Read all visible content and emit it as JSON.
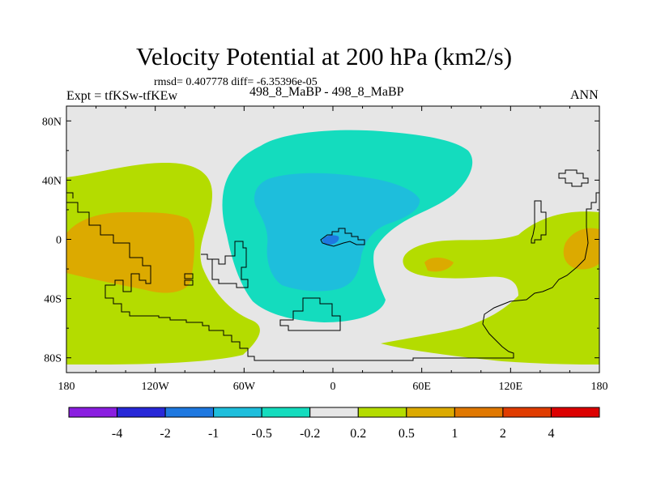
{
  "chart_data": {
    "type": "map_contour",
    "title": "Velocity Potential at 200 hPa (km2/s)",
    "stats_text": "rmsd= 0.407778 diff= -6.35396e-05",
    "left_label": "Expt = tfKSw-tfKEw",
    "center_label": "498_8_MaBP - 498_8_MaBP",
    "right_label": "ANN",
    "x_axis": {
      "range": [
        -180,
        180
      ],
      "ticks": [
        -180,
        -120,
        -60,
        0,
        60,
        120,
        180
      ],
      "tick_labels": [
        "180",
        "120W",
        "60W",
        "0",
        "60E",
        "120E",
        "180"
      ]
    },
    "y_axis": {
      "range": [
        -90,
        90
      ],
      "ticks": [
        80,
        40,
        0,
        -40,
        -80
      ],
      "tick_labels": [
        "80N",
        "40N",
        "0",
        "40S",
        "80S"
      ]
    },
    "colorbar": {
      "levels": [
        "-4",
        "-2",
        "-1",
        "-0.5",
        "-0.2",
        "0.2",
        "0.5",
        "1",
        "2",
        "4"
      ],
      "colors": [
        "#8a1ee0",
        "#2828d8",
        "#1e78e0",
        "#1ebedc",
        "#14dcbe",
        "#e6e6e6",
        "#b4dc00",
        "#dcaa00",
        "#e07800",
        "#e03c00",
        "#dc0000"
      ]
    },
    "fields": {
      "pos1_color": "#b4dc00",
      "pos2_color": "#dcaa00",
      "neg1_color": "#14dcbe",
      "neg2_color": "#1ebedc",
      "neg3_color": "#1e78e0",
      "background": "#e6e6e6"
    }
  }
}
